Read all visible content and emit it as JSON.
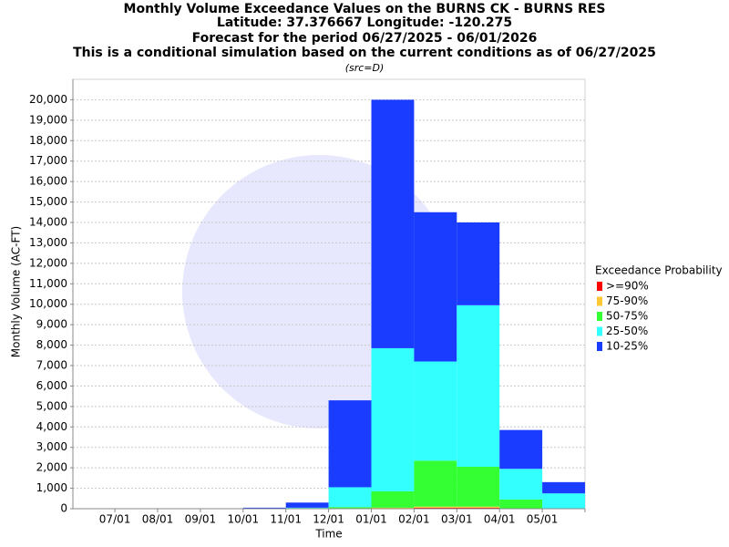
{
  "chart_data": {
    "type": "stacked_bar",
    "title": "Monthly Volume Exceedance Values on the BURNS CK - BURNS RES",
    "subtitles": [
      "Latitude: 37.376667 Longitude: -120.275",
      "Forecast for the period 06/27/2025 - 06/01/2026",
      "This is a conditional simulation based on the current conditions as of 06/27/2025"
    ],
    "note": "(src=D)",
    "x_label": "Time",
    "y_label": "Monthly Volume (AC-FT)",
    "legend_title": "Exceedance Probability",
    "categories": [
      "07/01",
      "08/01",
      "09/01",
      "10/01",
      "11/01",
      "12/01",
      "01/01",
      "02/01",
      "03/01",
      "04/01",
      "05/01"
    ],
    "series": [
      {
        "name": ">=90%",
        "color": "#ff0000",
        "values": [
          0,
          0,
          0,
          0,
          0,
          0,
          20,
          50,
          50,
          0,
          0
        ]
      },
      {
        "name": "75-90%",
        "color": "#ffc832",
        "values": [
          0,
          0,
          0,
          0,
          0,
          0,
          30,
          50,
          50,
          0,
          0
        ]
      },
      {
        "name": "50-75%",
        "color": "#33ff33",
        "values": [
          0,
          0,
          0,
          0,
          0,
          80,
          800,
          2250,
          1950,
          450,
          20
        ]
      },
      {
        "name": "25-50%",
        "color": "#33ffff",
        "values": [
          0,
          0,
          0,
          20,
          50,
          970,
          7000,
          4850,
          7900,
          1500,
          730
        ]
      },
      {
        "name": "10-25%",
        "color": "#1a3cff",
        "values": [
          0,
          0,
          0,
          30,
          250,
          4250,
          12150,
          7300,
          4050,
          1900,
          550
        ]
      }
    ],
    "ylim": [
      0,
      21000
    ],
    "yticks": [
      0,
      {
        "value": 1000,
        "label": "1,000"
      },
      {
        "value": 2000,
        "label": "2,000"
      },
      {
        "value": 3000,
        "label": "3,000"
      },
      {
        "value": 4000,
        "label": "4,000"
      },
      {
        "value": 5000,
        "label": "5,000"
      },
      {
        "value": 6000,
        "label": "6,000"
      },
      {
        "value": 7000,
        "label": "7,000"
      },
      {
        "value": 8000,
        "label": "8,000"
      },
      {
        "value": 9000,
        "label": "9,000"
      },
      {
        "value": 10000,
        "label": "10,000"
      },
      {
        "value": 11000,
        "label": "11,000"
      },
      {
        "value": 12000,
        "label": "12,000"
      },
      {
        "value": 13000,
        "label": "13,000"
      },
      {
        "value": 14000,
        "label": "14,000"
      },
      {
        "value": 15000,
        "label": "15,000"
      },
      {
        "value": 16000,
        "label": "16,000"
      },
      {
        "value": 17000,
        "label": "17,000"
      },
      {
        "value": 18000,
        "label": "18,000"
      },
      {
        "value": 19000,
        "label": "19,000"
      },
      {
        "value": 20000,
        "label": "20,000"
      }
    ],
    "grid": true,
    "legend": "right"
  }
}
